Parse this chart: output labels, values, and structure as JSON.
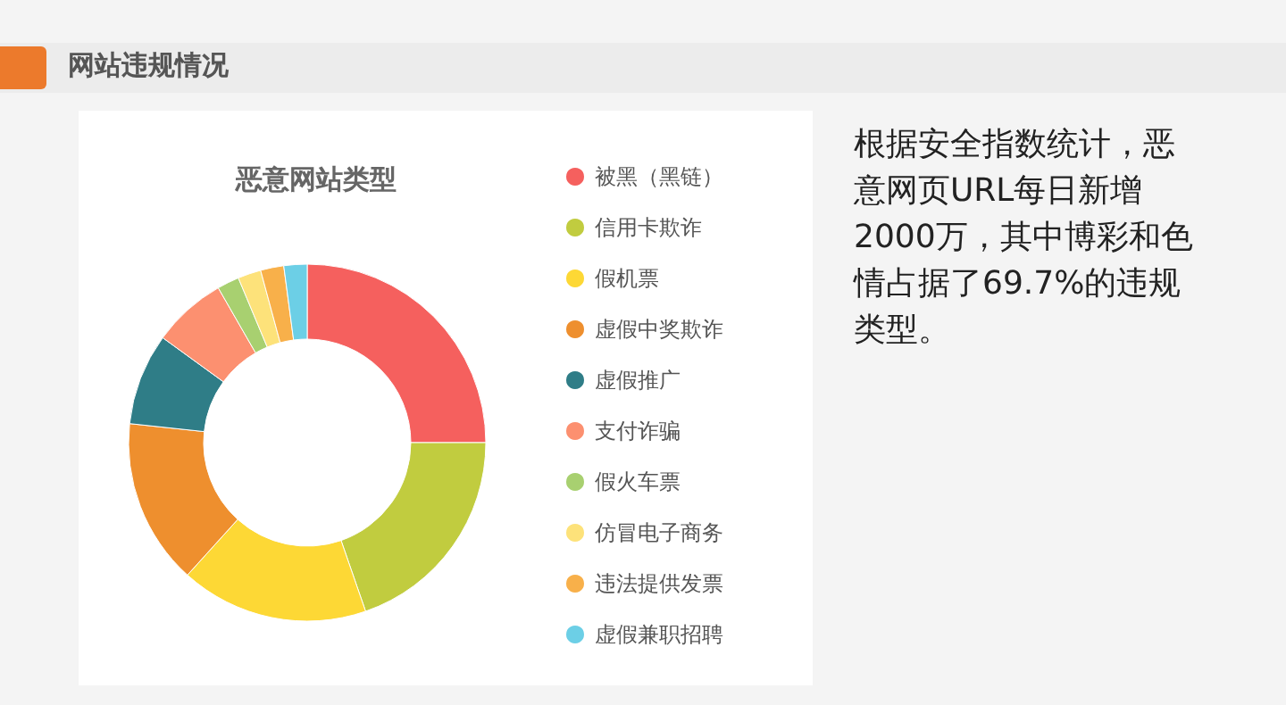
{
  "chart_data": {
    "type": "donut",
    "title": "恶意网站类型",
    "categories": [
      "被黑（黑链）",
      "信用卡欺诈",
      "假机票",
      "虚假中奖欺诈",
      "虚假推广",
      "支付诈骗",
      "假火车票",
      "仿冒电子商务",
      "违法提供发票",
      "虚假兼职招聘"
    ],
    "values": [
      25,
      19.7,
      17,
      15,
      8.3,
      6.7,
      2,
      2.1,
      2.1,
      2.1
    ],
    "colors": [
      "#f5605e",
      "#c1cc3f",
      "#fdd835",
      "#ee8f2e",
      "#2f7d87",
      "#fc9070",
      "#a8d070",
      "#fde27a",
      "#f8b04a",
      "#6ccfe6"
    ],
    "legend": "right",
    "annotations": [
      "网站违规情况",
      "根据安全指数统计，恶意网页URL每日新增2000万，其中博彩和色情占据了69.7%的违规类型。"
    ]
  }
}
